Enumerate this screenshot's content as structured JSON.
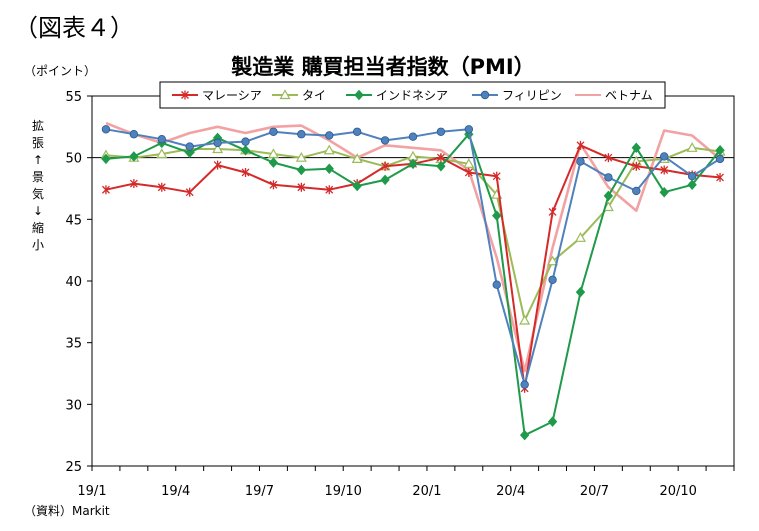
{
  "figure_label": "（図表４）",
  "unit": "（ポイント）",
  "yaxis_desc": [
    "拡",
    "張",
    "↑",
    "景",
    "気",
    "↓",
    "縮",
    "小"
  ],
  "source": "（資料）Markit",
  "chart_data": {
    "type": "line",
    "title": "製造業 購買担当者指数（PMI）",
    "ylim": [
      25,
      55
    ],
    "yticks": [
      25,
      30,
      35,
      40,
      45,
      50,
      55
    ],
    "reference_line": 50,
    "x": [
      "19/1",
      "19/2",
      "19/3",
      "19/4",
      "19/5",
      "19/6",
      "19/7",
      "19/8",
      "19/9",
      "19/10",
      "19/11",
      "19/12",
      "20/1",
      "20/2",
      "20/3",
      "20/4",
      "20/5",
      "20/6",
      "20/7",
      "20/8",
      "20/9",
      "20/10",
      "20/11"
    ],
    "xtick_labels": [
      "19/1",
      "19/4",
      "19/7",
      "19/10",
      "20/1",
      "20/4",
      "20/7",
      "20/10"
    ],
    "legend_position": "top",
    "grid": false,
    "series": [
      {
        "name": "マレーシア",
        "color": "#d42a2a",
        "marker": "star",
        "values": [
          47.4,
          47.9,
          47.6,
          47.2,
          49.4,
          48.8,
          47.8,
          47.6,
          47.4,
          47.9,
          49.3,
          49.5,
          50.0,
          48.8,
          48.5,
          31.3,
          45.6,
          51.0,
          50.0,
          49.3,
          49.0,
          48.6,
          48.4
        ]
      },
      {
        "name": "タイ",
        "color": "#9bbb59",
        "marker": "triangle",
        "values": [
          50.2,
          50.0,
          50.3,
          50.7,
          50.7,
          50.6,
          50.3,
          50.0,
          50.6,
          49.9,
          49.3,
          50.1,
          49.9,
          49.5,
          47.0,
          36.8,
          41.6,
          43.5,
          46.0,
          49.7,
          49.9,
          50.8,
          50.5
        ]
      },
      {
        "name": "インドネシア",
        "color": "#1f9a4a",
        "marker": "diamond",
        "values": [
          49.9,
          50.1,
          51.2,
          50.4,
          51.6,
          50.6,
          49.6,
          49.0,
          49.1,
          47.7,
          48.2,
          49.5,
          49.3,
          51.9,
          45.3,
          27.5,
          28.6,
          39.1,
          46.9,
          50.8,
          47.2,
          47.8,
          50.6
        ]
      },
      {
        "name": "フィリピン",
        "color": "#4f81bd",
        "marker": "circle",
        "values": [
          52.3,
          51.9,
          51.5,
          50.9,
          51.2,
          51.3,
          52.1,
          51.9,
          51.8,
          52.1,
          51.4,
          51.7,
          52.1,
          52.3,
          39.7,
          31.6,
          40.1,
          49.7,
          48.4,
          47.3,
          50.1,
          48.5,
          49.9
        ]
      },
      {
        "name": "ベトナム",
        "color": "#f2a2a2",
        "marker": "none",
        "values": [
          52.8,
          51.9,
          51.2,
          52.0,
          52.5,
          52.0,
          52.5,
          52.6,
          51.4,
          50.0,
          51.0,
          50.8,
          50.6,
          49.0,
          41.9,
          32.7,
          42.7,
          51.1,
          47.6,
          45.7,
          52.2,
          51.8,
          49.9
        ]
      }
    ]
  }
}
